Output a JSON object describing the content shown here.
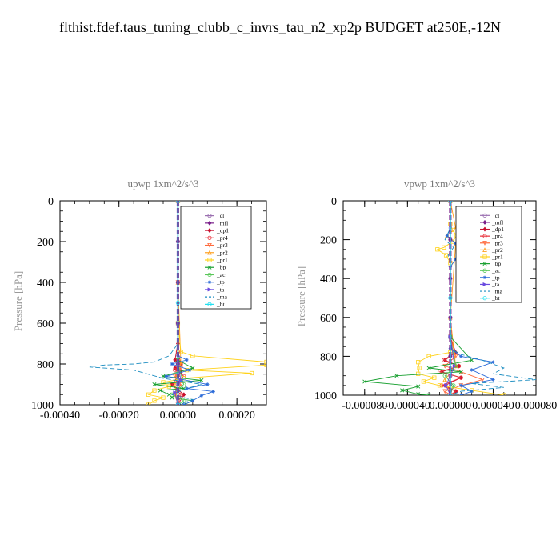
{
  "page": {
    "title": "flthist.fdef.taus_tuning_clubb_c_invrs_tau_n2_xp2p  BUDGET at250E,-12N"
  },
  "colors": {
    "_cl": "#9a6fb0",
    "_mfl": "#7a1f8a",
    "_dp1": "#c8102e",
    "_pr4": "#e8303a",
    "_pr3": "#ff6a3c",
    "_pr2": "#ffa020",
    "_pr1": "#ffd21a",
    "_bp": "#18a030",
    "_ac": "#5ac85a",
    "_tp": "#2a6ad8",
    "_ta": "#6a4ae0",
    "_ma": "#1a8cc0",
    "_bt": "#20e0f0"
  },
  "chart_data": [
    {
      "type": "line",
      "title": "upwp   1xm^2/s^3",
      "ylabel": "Pressure [hPa]",
      "xlabel": "",
      "xlim": [
        -0.0004,
        0.0003
      ],
      "ylim": [
        1000,
        0
      ],
      "xticks": [
        -0.0004,
        -0.0002,
        0.0,
        0.0002
      ],
      "xtick_labels": [
        "-0.00040",
        "-0.00020",
        "0.00000",
        "0.00020"
      ],
      "yticks": [
        0,
        200,
        400,
        600,
        800,
        1000
      ],
      "ytick_labels": [
        "0",
        "200",
        "400",
        "600",
        "800",
        "1000"
      ],
      "legend": {
        "position": "top-right",
        "entries": [
          "_cl",
          "_mfl",
          "_dp1",
          "_pr4",
          "_pr3",
          "_pr2",
          "_pr1",
          "_bp",
          "_ac",
          "_tp",
          "_ta",
          "_ma",
          "_bt"
        ]
      },
      "series": [
        {
          "name": "_cl",
          "marker": "o",
          "x": [
            0,
            0,
            0,
            0,
            0,
            0,
            0
          ],
          "y": [
            0,
            200,
            400,
            600,
            800,
            900,
            1000
          ]
        },
        {
          "name": "_mfl",
          "marker": "d",
          "x": [
            0,
            0,
            0,
            0,
            0,
            0
          ],
          "y": [
            0,
            200,
            400,
            600,
            800,
            1000
          ]
        },
        {
          "name": "_dp1",
          "marker": "d",
          "x": [
            0,
            0,
            0,
            -1e-05,
            1e-05,
            -1e-05,
            1e-05,
            0,
            -2e-05,
            2e-05,
            0
          ],
          "y": [
            0,
            400,
            700,
            780,
            800,
            820,
            840,
            860,
            900,
            950,
            1000
          ]
        },
        {
          "name": "_pr4",
          "marker": "o",
          "x": [
            0,
            0,
            0,
            1e-05,
            -1e-05,
            2e-05,
            -2e-05,
            1e-05,
            0
          ],
          "y": [
            0,
            400,
            740,
            800,
            830,
            860,
            900,
            950,
            1000
          ]
        },
        {
          "name": "_pr3",
          "marker": "v",
          "x": [
            0,
            0,
            0,
            1e-05,
            -1e-05,
            1e-05,
            -1e-05,
            0
          ],
          "y": [
            0,
            400,
            780,
            820,
            860,
            900,
            950,
            1000
          ]
        },
        {
          "name": "_pr2",
          "marker": "^",
          "x": [
            0,
            0,
            1e-05,
            0,
            -1e-05,
            0
          ],
          "y": [
            0,
            400,
            800,
            850,
            900,
            1000
          ]
        },
        {
          "name": "_pr1",
          "marker": "s",
          "x": [
            0,
            0,
            1e-05,
            5e-05,
            0.0003,
            0.0003,
            3e-05,
            0.00025,
            2e-05,
            -5e-05,
            -3e-05,
            -8e-05,
            -0.0001,
            -5e-05,
            -8e-05,
            -0.0001
          ],
          "y": [
            0,
            600,
            740,
            760,
            790,
            805,
            830,
            845,
            870,
            890,
            910,
            930,
            950,
            965,
            980,
            1000
          ]
        },
        {
          "name": "_bp",
          "marker": "x",
          "x": [
            0,
            0,
            0,
            5e-05,
            -5e-05,
            8e-05,
            -8e-05,
            2e-05,
            -6e-05,
            -3e-05,
            -2e-05,
            5e-05,
            2e-05
          ],
          "y": [
            0,
            600,
            780,
            820,
            860,
            880,
            900,
            920,
            930,
            950,
            965,
            980,
            1000
          ]
        },
        {
          "name": "_ac",
          "marker": "o",
          "x": [
            0,
            0,
            0,
            2e-05,
            -2e-05,
            2e-05,
            0
          ],
          "y": [
            0,
            600,
            800,
            900,
            950,
            980,
            1000
          ]
        },
        {
          "name": "_tp",
          "marker": "*",
          "x": [
            0,
            0,
            0,
            3e-05,
            -2e-05,
            4e-05,
            -4e-05,
            0.0001,
            3e-05,
            0.00012,
            8e-05,
            5e-05,
            2e-05
          ],
          "y": [
            0,
            600,
            760,
            780,
            800,
            830,
            860,
            900,
            920,
            935,
            955,
            980,
            1000
          ]
        },
        {
          "name": "_ta",
          "marker": ">",
          "x": [
            0,
            0,
            0,
            1e-05,
            -1e-05,
            0
          ],
          "y": [
            0,
            600,
            800,
            880,
            940,
            1000
          ]
        },
        {
          "name": "_ma",
          "marker": "-",
          "x": [
            0,
            0,
            -3e-05,
            -8e-05,
            -0.00015,
            -0.00025,
            -0.0003,
            -0.00015,
            -0.0001,
            -5e-05,
            8e-05,
            3e-05,
            -2e-05,
            5e-05,
            0.0
          ],
          "y": [
            0,
            700,
            760,
            790,
            800,
            805,
            815,
            830,
            850,
            870,
            900,
            920,
            950,
            975,
            1000
          ]
        },
        {
          "name": "_bt",
          "marker": "o",
          "x": [
            0,
            0,
            0
          ],
          "y": [
            0,
            500,
            1000
          ]
        }
      ]
    },
    {
      "type": "line",
      "title": "vpwp   1xm^2/s^3",
      "ylabel": "Pressure [hPa]",
      "xlabel": "",
      "xlim": [
        -0.0001,
        8e-05
      ],
      "ylim": [
        1000,
        0
      ],
      "xticks": [
        -8e-05,
        -4e-05,
        0.0,
        4e-05,
        8e-05
      ],
      "xtick_labels": [
        "-0.000080",
        "-0.000040",
        "0.000000",
        "0.000040",
        "0.000080"
      ],
      "yticks": [
        0,
        200,
        400,
        600,
        800,
        1000
      ],
      "ytick_labels": [
        "0",
        "200",
        "400",
        "600",
        "800",
        "1000"
      ],
      "legend": {
        "position": "top-right",
        "entries": [
          "_cl",
          "_mfl",
          "_dp1",
          "_pr4",
          "_pr3",
          "_pr2",
          "_pr1",
          "_bp",
          "_ac",
          "_tp",
          "_ta",
          "_ma",
          "_bt"
        ]
      },
      "series": [
        {
          "name": "_cl",
          "marker": "o",
          "x": [
            0,
            0,
            0,
            0,
            0,
            0,
            0
          ],
          "y": [
            0,
            200,
            400,
            600,
            800,
            900,
            1000
          ]
        },
        {
          "name": "_mfl",
          "marker": "d",
          "x": [
            0,
            0,
            0,
            0,
            0,
            0
          ],
          "y": [
            0,
            200,
            400,
            600,
            800,
            1000
          ]
        },
        {
          "name": "_dp1",
          "marker": "d",
          "x": [
            0,
            0,
            5e-06,
            -5e-06,
            8e-06,
            -8e-06,
            1e-05,
            -5e-06,
            5e-06,
            0
          ],
          "y": [
            0,
            700,
            780,
            820,
            850,
            880,
            910,
            950,
            980,
            1000
          ]
        },
        {
          "name": "_pr4",
          "marker": "o",
          "x": [
            0,
            0,
            4e-06,
            -6e-06,
            8e-06,
            -1e-05,
            1e-05,
            -8e-06,
            5e-06,
            0
          ],
          "y": [
            0,
            700,
            780,
            820,
            850,
            880,
            910,
            950,
            980,
            1000
          ]
        },
        {
          "name": "_pr3",
          "marker": "v",
          "x": [
            0,
            0,
            5e-06,
            -5e-06,
            1e-05,
            3e-05,
            1e-05,
            -5e-06,
            0
          ],
          "y": [
            0,
            700,
            800,
            850,
            880,
            920,
            950,
            980,
            1000
          ]
        },
        {
          "name": "_pr2",
          "marker": "^",
          "x": [
            0,
            5e-06,
            -3e-06,
            5e-06,
            0,
            5e-06,
            -5e-06,
            0
          ],
          "y": [
            0,
            140,
            180,
            220,
            600,
            850,
            920,
            1000
          ]
        },
        {
          "name": "_pr1",
          "marker": "s",
          "x": [
            0,
            0,
            2e-06,
            6e-06,
            2e-06,
            -6e-06,
            -1.2e-05,
            -4e-06,
            0,
            0,
            -2e-05,
            -3e-05,
            -2.9e-05,
            -3e-05,
            -1.5e-05,
            -2.5e-05,
            -1e-05,
            2e-05,
            5e-05
          ],
          "y": [
            0,
            120,
            150,
            180,
            210,
            240,
            250,
            280,
            320,
            780,
            800,
            830,
            860,
            890,
            910,
            930,
            950,
            975,
            1000
          ]
        },
        {
          "name": "_bp",
          "marker": "x",
          "x": [
            0,
            0,
            2e-05,
            -2e-05,
            1e-05,
            -5e-05,
            -8e-05,
            -3e-05,
            -4.5e-05,
            -3e-05,
            -2e-05
          ],
          "y": [
            0,
            700,
            820,
            860,
            880,
            900,
            930,
            955,
            975,
            995,
            1000
          ]
        },
        {
          "name": "_ac",
          "marker": "o",
          "x": [
            0,
            0,
            5e-06,
            -5e-06,
            3e-06,
            0
          ],
          "y": [
            0,
            700,
            850,
            900,
            950,
            1000
          ]
        },
        {
          "name": "_tp",
          "marker": "*",
          "x": [
            0,
            0,
            -3e-06,
            5e-06,
            2e-05,
            5e-06,
            0,
            0,
            1e-05,
            4e-05,
            2e-05,
            4e-05,
            1e-05,
            2e-05,
            1e-05
          ],
          "y": [
            0,
            140,
            180,
            220,
            260,
            300,
            340,
            760,
            800,
            830,
            870,
            920,
            950,
            980,
            1000
          ]
        },
        {
          "name": "_ta",
          "marker": ">",
          "x": [
            0,
            0,
            4e-06,
            -4e-06,
            0
          ],
          "y": [
            0,
            700,
            850,
            950,
            1000
          ]
        },
        {
          "name": "_ma",
          "marker": "-",
          "x": [
            0,
            0,
            -5e-06,
            3e-06,
            -2e-06,
            0,
            0,
            1e-05,
            3e-05,
            5e-05,
            4e-05,
            8e-05,
            2e-05,
            5e-05,
            1e-05,
            0
          ],
          "y": [
            0,
            140,
            200,
            240,
            280,
            320,
            760,
            790,
            820,
            860,
            890,
            920,
            940,
            960,
            980,
            1000
          ]
        },
        {
          "name": "_bt",
          "marker": "o",
          "x": [
            0,
            0,
            0
          ],
          "y": [
            0,
            500,
            1000
          ]
        }
      ]
    }
  ]
}
